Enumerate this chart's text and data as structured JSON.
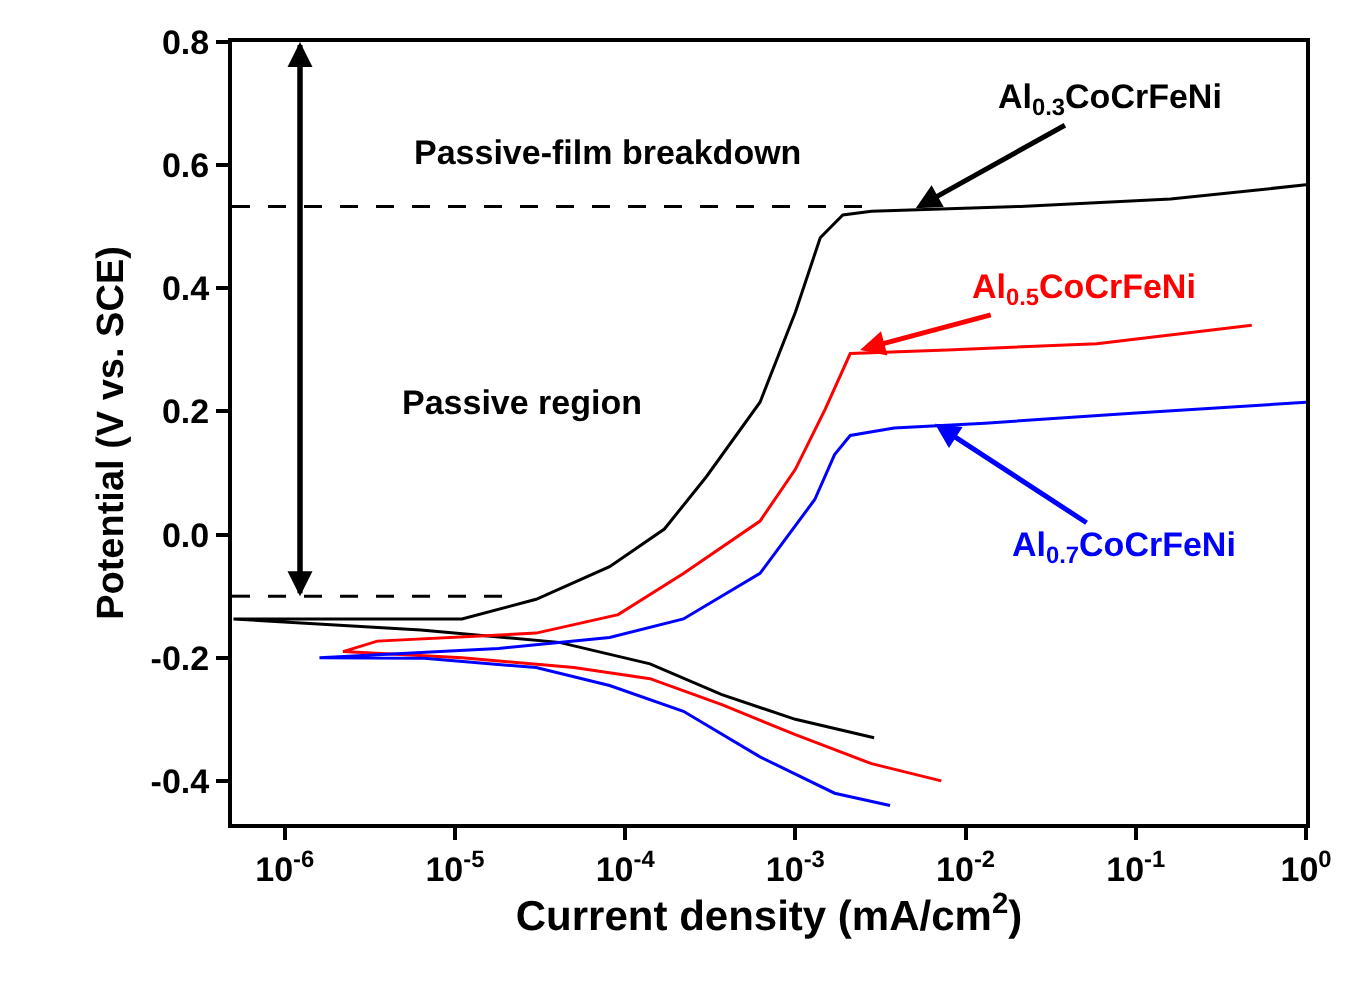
{
  "chart_data": {
    "type": "line",
    "xlabel": "Current density (mA/cm$^{2}$)",
    "ylabel": "Potential (V vs. SCE)",
    "log": "x",
    "marker": "none",
    "xlim": [
      4.9e-07,
      1
    ],
    "ylim": [
      -0.47,
      0.8
    ],
    "xticks": [
      {
        "value": 1e-06,
        "label": "10$^{-6}$"
      },
      {
        "value": 1e-05,
        "label": "10$^{-5}$"
      },
      {
        "value": 0.0001,
        "label": "10$^{-4}$"
      },
      {
        "value": 0.001,
        "label": "10$^{-3}$"
      },
      {
        "value": 0.01,
        "label": "10$^{-2}$"
      },
      {
        "value": 0.1,
        "label": "10$^{-1}$"
      },
      {
        "value": 1,
        "label": "10$^{0}$"
      }
    ],
    "yticks": [
      {
        "value": -0.4,
        "label": "-0.4"
      },
      {
        "value": -0.2,
        "label": "-0.2"
      },
      {
        "value": 0,
        "label": "0.0"
      },
      {
        "value": 0.2,
        "label": "0.2"
      },
      {
        "value": 0.4,
        "label": "0.4"
      },
      {
        "value": 0.6,
        "label": "0.6"
      },
      {
        "value": 0.8,
        "label": "0.8"
      }
    ],
    "series": [
      {
        "color": "#000000",
        "line_style": "solid",
        "x": [
          0.0029,
          0.001,
          0.00037,
          0.00014,
          4.1e-05,
          6.3e-06,
          5e-07,
          5e-06,
          1.1e-05,
          3e-05,
          8.1e-05,
          0.00017,
          0.0003,
          0.00062,
          0.001,
          0.0014,
          0.0019,
          0.0028,
          0.021,
          0.16,
          1.0
        ],
        "values": [
          -0.33,
          -0.3,
          -0.26,
          -0.21,
          -0.175,
          -0.155,
          -0.137,
          -0.137,
          -0.137,
          -0.105,
          -0.052,
          0.009,
          0.094,
          0.215,
          0.361,
          0.482,
          0.519,
          0.525,
          0.533,
          0.545,
          0.568
        ]
      },
      {
        "color": "#ff0000",
        "line_style": "solid",
        "x": [
          0.0072,
          0.0028,
          0.001,
          0.00037,
          0.00014,
          5e-05,
          1.1e-05,
          2.2e-06,
          3.5e-06,
          3e-05,
          9.1e-05,
          0.00022,
          0.00062,
          0.001,
          0.0015,
          0.0021,
          0.0078,
          0.059,
          0.48
        ],
        "values": [
          -0.4,
          -0.372,
          -0.325,
          -0.276,
          -0.234,
          -0.216,
          -0.2,
          -0.19,
          -0.173,
          -0.16,
          -0.13,
          -0.063,
          0.022,
          0.106,
          0.204,
          0.294,
          0.3,
          0.31,
          0.34
        ]
      },
      {
        "color": "#0000ff",
        "line_style": "solid",
        "x": [
          0.0036,
          0.0017,
          0.00062,
          0.00022,
          8.1e-05,
          3e-05,
          6.6e-06,
          1.6e-06,
          1.8e-05,
          8.1e-05,
          0.00022,
          0.00062,
          0.0013,
          0.0017,
          0.0021,
          0.0038,
          0.013,
          0.095,
          1.0
        ],
        "values": [
          -0.44,
          -0.42,
          -0.361,
          -0.287,
          -0.245,
          -0.216,
          -0.201,
          -0.2,
          -0.185,
          -0.167,
          -0.137,
          -0.063,
          0.057,
          0.13,
          0.161,
          0.173,
          0.181,
          0.197,
          0.215
        ]
      },
      {
        "color": "#000000",
        "line_style": "dashed",
        "x": [
          4.9e-07,
          0.0028
        ],
        "values": [
          0.533,
          0.533
        ]
      },
      {
        "color": "#000000",
        "line_style": "dashed",
        "x": [
          4.9e-07,
          2.2e-05
        ],
        "values": [
          -0.1,
          -0.1
        ]
      }
    ],
    "annotations": [
      "Passive-film breakdown",
      "Passive region",
      {
        "text": "Al$_{0.3}$CoCrFeNi",
        "x": 0.0051,
        "y": 0.53
      },
      {
        "text": "Al$_{0.5}$CoCrFeNi",
        "x": 0.0024,
        "y": 0.3
      },
      {
        "text": "Al$_{0.7}$CoCrFeNi",
        "x": 0.0066,
        "y": 0.18
      }
    ]
  }
}
